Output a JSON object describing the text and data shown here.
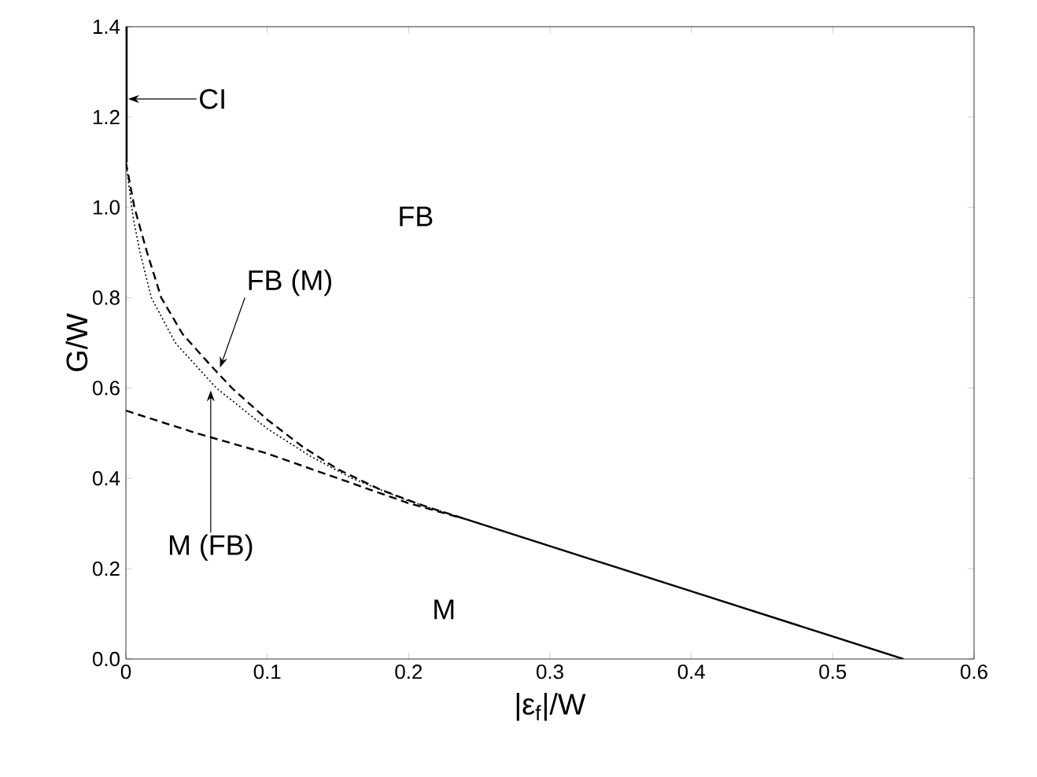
{
  "chart_data": {
    "type": "line",
    "xlabel": "|ε$_{f}$|/W",
    "ylabel": "G/W",
    "xlim": [
      0,
      0.6
    ],
    "ylim": [
      0,
      1.4
    ],
    "xticks": [
      0,
      0.1,
      0.2,
      0.3,
      0.4,
      0.5,
      0.6
    ],
    "yticks": [
      {
        "value": 0,
        "label": "0.0"
      },
      0.2,
      0.4,
      0.6,
      0.8,
      {
        "value": 1,
        "label": "1.0"
      },
      1.2,
      1.4
    ],
    "series": [
      {
        "color": "#000000",
        "line_style": "solid",
        "x": [
          0,
          0
        ],
        "values": [
          1.1,
          1.4
        ]
      },
      {
        "color": "#000000",
        "line_style": "solid",
        "x": [
          0.24,
          0.55
        ],
        "values": [
          0.31,
          0
        ]
      },
      {
        "color": "#000000",
        "line_style": "dashed",
        "x": [
          0,
          0.006,
          0.015,
          0.025,
          0.04,
          0.06,
          0.075,
          0.1,
          0.125,
          0.15,
          0.18,
          0.21,
          0.24
        ],
        "values": [
          1.1,
          1.0,
          0.9,
          0.8,
          0.72,
          0.65,
          0.6,
          0.53,
          0.47,
          0.42,
          0.375,
          0.34,
          0.31
        ]
      },
      {
        "color": "#000000",
        "line_style": "dotted",
        "x": [
          0,
          0.005,
          0.01,
          0.018,
          0.035,
          0.064,
          0.1,
          0.13,
          0.16,
          0.2,
          0.24
        ],
        "values": [
          1.1,
          0.98,
          0.9,
          0.8,
          0.7,
          0.6,
          0.51,
          0.45,
          0.4,
          0.35,
          0.31
        ]
      },
      {
        "color": "#000000",
        "line_style": "dashed",
        "x": [
          0,
          0.05,
          0.1,
          0.15,
          0.2,
          0.24
        ],
        "values": [
          0.55,
          0.5,
          0.455,
          0.4,
          0.345,
          0.31
        ]
      }
    ],
    "annotations": [
      {
        "text": "CI",
        "x": 0,
        "y": 1.24
      },
      {
        "text": "FB (M)",
        "x": 0.066,
        "y": 0.64
      },
      {
        "text": "M (FB)",
        "x": 0.06,
        "y": 0.6
      },
      "FB",
      "M"
    ]
  }
}
